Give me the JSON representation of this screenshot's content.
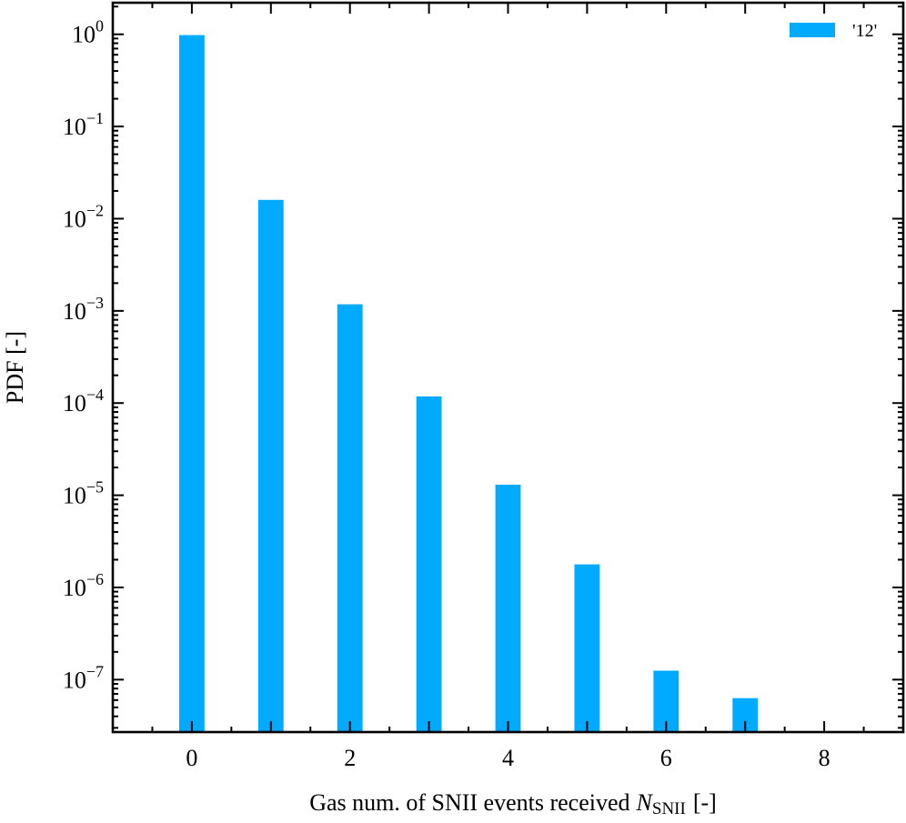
{
  "chart_data": {
    "type": "bar",
    "title": "",
    "xlabel": "Gas num. of SNII events received",
    "xlabel_symbol": "N",
    "xlabel_subscript": "SNII",
    "xlabel_unit": "[-]",
    "ylabel": "PDF [-]",
    "yscale": "log",
    "xlim": [
      -1,
      9
    ],
    "ylim": [
      2.7e-08,
      2.2
    ],
    "x_ticks": [
      0,
      2,
      4,
      6,
      8
    ],
    "y_tick_exponents": [
      0,
      -1,
      -2,
      -3,
      -4,
      -5,
      -6,
      -7
    ],
    "y_tick_base": "10",
    "grid": false,
    "legend_position": "top-right",
    "series": [
      {
        "name": "'12'",
        "color": "#00aaff",
        "x": [
          0,
          1,
          2,
          3,
          4,
          5,
          6,
          7
        ],
        "values": [
          0.98,
          0.016,
          0.00118,
          0.000118,
          1.3e-05,
          1.78e-06,
          1.25e-07,
          6.3e-08
        ]
      }
    ]
  }
}
